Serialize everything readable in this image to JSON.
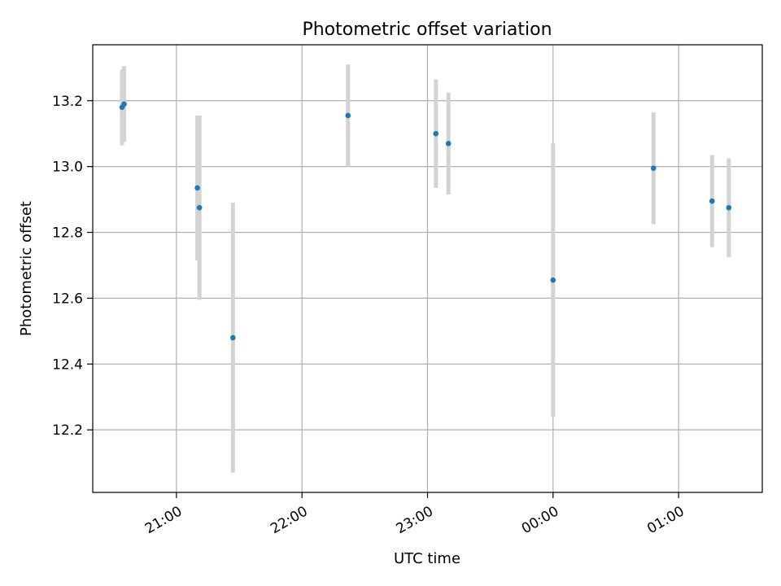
{
  "chart_data": {
    "type": "scatter",
    "title": "Photometric offset variation",
    "xlabel": "UTC time",
    "ylabel": "Photometric offset",
    "x_axis": {
      "kind": "time",
      "range": [
        "20:20",
        "01:40"
      ],
      "ticks": [
        "21:00",
        "22:00",
        "23:00",
        "00:00",
        "01:00"
      ]
    },
    "y_axis": {
      "range": [
        12.01,
        13.37
      ],
      "ticks": [
        "12.2",
        "12.4",
        "12.6",
        "12.8",
        "13.0",
        "13.2"
      ]
    },
    "grid": true,
    "colors": {
      "marker": "#1f77b4",
      "errorbar": "#d3d3d3",
      "grid": "#b0b0b0"
    },
    "points": [
      {
        "x": "20:34",
        "y": 13.18,
        "err": 0.115
      },
      {
        "x": "20:35",
        "y": 13.19,
        "err": 0.115
      },
      {
        "x": "21:10",
        "y": 12.935,
        "err": 0.22
      },
      {
        "x": "21:11",
        "y": 12.875,
        "err": 0.28
      },
      {
        "x": "21:27",
        "y": 12.48,
        "err": 0.41
      },
      {
        "x": "22:22",
        "y": 13.155,
        "err": 0.155
      },
      {
        "x": "23:04",
        "y": 13.1,
        "err": 0.165
      },
      {
        "x": "23:10",
        "y": 13.07,
        "err": 0.155
      },
      {
        "x": "00:00",
        "y": 12.655,
        "err": 0.415
      },
      {
        "x": "00:48",
        "y": 12.995,
        "err": 0.17
      },
      {
        "x": "01:16",
        "y": 12.895,
        "err": 0.14
      },
      {
        "x": "01:24",
        "y": 12.875,
        "err": 0.15
      }
    ]
  }
}
